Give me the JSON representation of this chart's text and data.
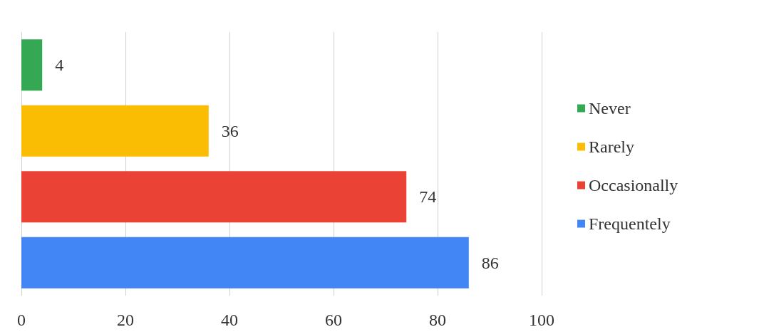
{
  "chart_data": {
    "type": "bar",
    "orientation": "horizontal",
    "categories": [
      null,
      null,
      null,
      null
    ],
    "series": [
      {
        "name": "Never",
        "color": "#34a853",
        "values": [
          4,
          null,
          null,
          null
        ]
      },
      {
        "name": "Rarely",
        "color": "#fbbc04",
        "values": [
          null,
          36,
          null,
          null
        ]
      },
      {
        "name": "Occasionally",
        "color": "#ea4335",
        "values": [
          null,
          null,
          74,
          null
        ]
      },
      {
        "name": "Frequentely",
        "color": "#4285f4",
        "values": [
          null,
          null,
          null,
          86
        ]
      }
    ],
    "xlim": [
      0,
      100
    ],
    "xticks": [
      0,
      20,
      40,
      60,
      80,
      100
    ],
    "grid": "x",
    "legend": "right",
    "data_labels": true
  }
}
